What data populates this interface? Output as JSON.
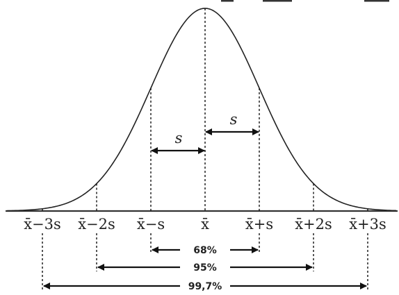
{
  "figure": {
    "mean_positions": [
      {
        "label": "x̄−3s",
        "sigma": -3
      },
      {
        "label": "x̄−2s",
        "sigma": -2
      },
      {
        "label": "x̄−s",
        "sigma": -1
      },
      {
        "label": "x̄",
        "sigma": 0
      },
      {
        "label": "x̄+s",
        "sigma": 1
      },
      {
        "label": "x̄+2s",
        "sigma": 2
      },
      {
        "label": "x̄+3s",
        "sigma": 3
      }
    ],
    "s_labels": {
      "left": "s",
      "right": "s"
    },
    "intervals": [
      {
        "label": "68%",
        "from_sigma": -1,
        "to_sigma": 1
      },
      {
        "label": "95%",
        "from_sigma": -2,
        "to_sigma": 2
      },
      {
        "label": "99,7%",
        "from_sigma": -3,
        "to_sigma": 3
      }
    ]
  }
}
